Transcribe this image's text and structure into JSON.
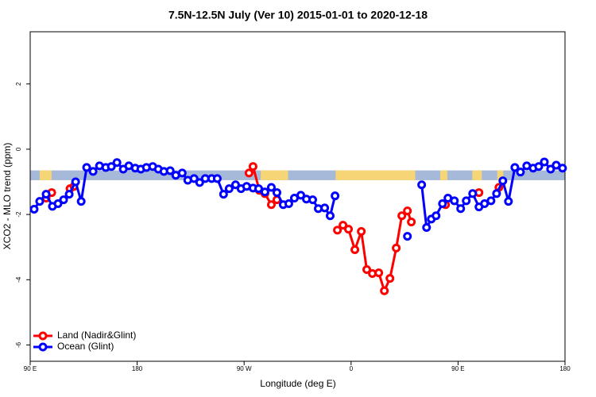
{
  "chart_data": {
    "type": "line",
    "title": "7.5N-12.5N July (Ver 10)   2015-01-01 to 2020-12-18",
    "x_label": "Longitude (deg E)",
    "y_label": "XCO2 - MLO trend (ppm)",
    "xlim": [
      90,
      540
    ],
    "ylim": [
      -6.5,
      3.6
    ],
    "xticks": [
      {
        "value": 90,
        "label": "90 E"
      },
      180,
      {
        "value": 270,
        "label": "90 W"
      },
      {
        "value": 360,
        "label": "0"
      },
      {
        "value": 450,
        "label": "90 E"
      },
      {
        "value": 540,
        "label": "180"
      }
    ],
    "yticks": [
      2,
      0,
      -2,
      -4,
      -6
    ],
    "legend": "bottom-left",
    "band": {
      "ylim": [
        -0.95,
        -0.65
      ],
      "color": "#a7b9d8",
      "land_color": "#f6d576",
      "land_spans": [
        [
          98,
          108
        ],
        [
          284,
          307
        ],
        [
          347,
          414
        ],
        [
          435,
          441
        ],
        [
          462,
          470
        ],
        [
          483,
          488
        ]
      ]
    },
    "series": [
      {
        "name": "Land (Nadir&Glint)",
        "color": "#ff0000",
        "x": [
          103.4,
          108.1,
          115,
          123.5,
          126.8,
          200,
          274.1,
          277.5,
          282.8,
          287.5,
          292.9,
          297.6,
          320,
          348.5,
          353.2,
          357.8,
          363.2,
          368.6,
          373.2,
          377.9,
          383.3,
          388.0,
          392.7,
          398.0,
          402.7,
          407.4,
          410.7,
          430,
          439.5,
          450,
          467.6,
          475,
          484.4
        ],
        "values": [
          -1.5,
          -1.33,
          null,
          -1.21,
          -1.14,
          null,
          -0.73,
          -0.53,
          -1.26,
          -1.36,
          -1.7,
          -1.55,
          null,
          -2.48,
          -2.33,
          -2.45,
          -3.08,
          -2.52,
          -3.69,
          -3.81,
          -3.79,
          -4.34,
          -3.96,
          -3.03,
          -2.04,
          -1.89,
          -2.23,
          null,
          -1.7,
          null,
          -1.33,
          null,
          -1.17
        ]
      },
      {
        "name": "Ocean (Glint)",
        "color": "#0000ff",
        "x": [
          93.3,
          98.0,
          103.4,
          108.7,
          113.4,
          118.1,
          122.8,
          128.2,
          132.9,
          137.5,
          142.9,
          148.3,
          153.6,
          158.3,
          163.0,
          168.3,
          173.0,
          178.4,
          183.1,
          187.8,
          193.1,
          197.8,
          202.5,
          207.8,
          212.5,
          217.9,
          222.6,
          227.9,
          232.6,
          237.3,
          242.7,
          247.4,
          252.7,
          257.4,
          262.8,
          267.4,
          272.1,
          277.5,
          282.2,
          287.5,
          292.9,
          297.6,
          302.9,
          307.6,
          312.3,
          317.7,
          322.4,
          327.7,
          332.4,
          337.8,
          342.4,
          346.5,
          380,
          407.4,
          415,
          419.4,
          423.5,
          427.5,
          431.5,
          436.9,
          441.5,
          446.9,
          452.2,
          456.9,
          462.3,
          467.6,
          472.3,
          477.7,
          482.4,
          487.7,
          492.4,
          497.8,
          502.5,
          507.8,
          513.2,
          517.9,
          522.6,
          527.9,
          532.6,
          537.9
        ],
        "values": [
          -1.84,
          -1.6,
          -1.38,
          -1.75,
          -1.67,
          -1.55,
          -1.38,
          -1.0,
          -1.6,
          -0.56,
          -0.68,
          -0.51,
          -0.56,
          -0.53,
          -0.41,
          -0.61,
          -0.51,
          -0.58,
          -0.61,
          -0.56,
          -0.53,
          -0.61,
          -0.68,
          -0.66,
          -0.8,
          -0.73,
          -0.95,
          -0.9,
          -1.02,
          -0.9,
          -0.9,
          -0.9,
          -1.38,
          -1.21,
          -1.09,
          -1.21,
          -1.14,
          -1.19,
          -1.21,
          -1.31,
          -1.17,
          -1.33,
          -1.7,
          -1.67,
          -1.5,
          -1.41,
          -1.53,
          -1.55,
          -1.82,
          -1.8,
          -2.04,
          -1.43,
          null,
          -2.67,
          null,
          -1.09,
          -2.4,
          -2.14,
          -2.04,
          -1.67,
          -1.5,
          -1.58,
          -1.82,
          -1.58,
          -1.36,
          -1.77,
          -1.67,
          -1.58,
          -1.36,
          -0.97,
          -1.6,
          -0.56,
          -0.7,
          -0.51,
          -0.58,
          -0.53,
          -0.39,
          -0.61,
          -0.49,
          -0.58
        ]
      }
    ]
  }
}
